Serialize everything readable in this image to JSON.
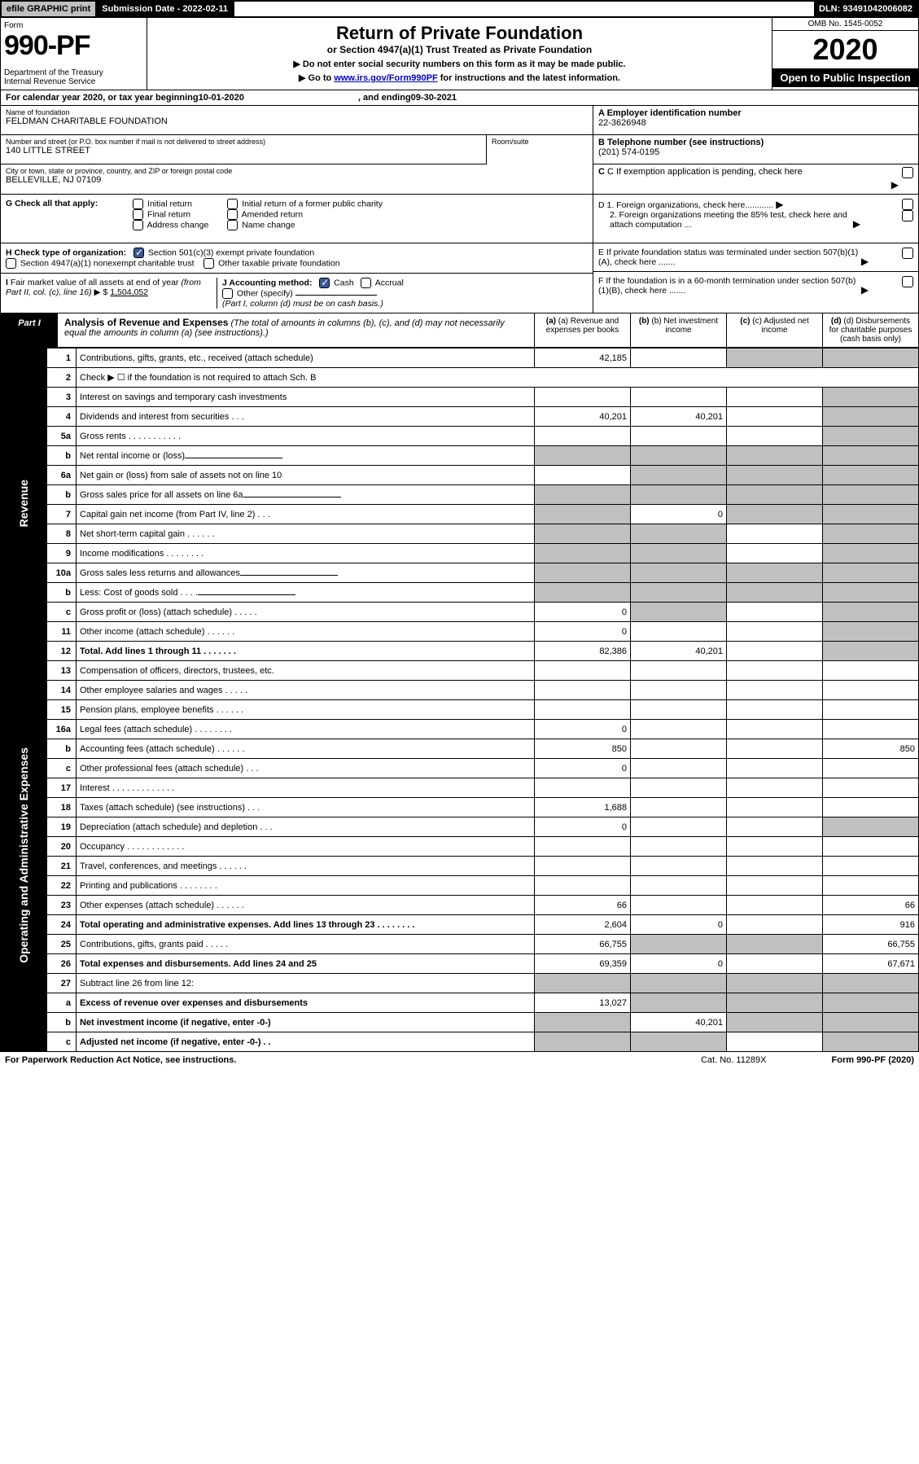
{
  "topbar": {
    "efile": "efile GRAPHIC print",
    "submission_label": "Submission Date - 2022-02-11",
    "dln": "DLN: 93491042006082"
  },
  "header": {
    "form_label": "Form",
    "form_number": "990-PF",
    "dept": "Department of the Treasury\nInternal Revenue Service",
    "title": "Return of Private Foundation",
    "subtitle": "or Section 4947(a)(1) Trust Treated as Private Foundation",
    "instr1": "▶ Do not enter social security numbers on this form as it may be made public.",
    "instr2_pre": "▶ Go to ",
    "instr2_link": "www.irs.gov/Form990PF",
    "instr2_post": " for instructions and the latest information.",
    "omb": "OMB No. 1545-0052",
    "year": "2020",
    "open": "Open to Public Inspection"
  },
  "cal": {
    "pre": "For calendar year 2020, or tax year beginning ",
    "begin": "10-01-2020",
    "mid": ", and ending ",
    "end": "09-30-2021"
  },
  "info": {
    "name_label": "Name of foundation",
    "name": "FELDMAN CHARITABLE FOUNDATION",
    "addr_label": "Number and street (or P.O. box number if mail is not delivered to street address)",
    "addr": "140 LITTLE STREET",
    "room_label": "Room/suite",
    "city_label": "City or town, state or province, country, and ZIP or foreign postal code",
    "city": "BELLEVILLE, NJ  07109",
    "a_label": "A Employer identification number",
    "a_val": "22-3626948",
    "b_label": "B Telephone number (see instructions)",
    "b_val": "(201) 574-0195",
    "c_label": "C If exemption application is pending, check here"
  },
  "g": {
    "label": "G Check all that apply:",
    "opts": [
      "Initial return",
      "Final return",
      "Address change",
      "Initial return of a former public charity",
      "Amended return",
      "Name change"
    ]
  },
  "h": {
    "label": "H Check type of organization:",
    "opt1": "Section 501(c)(3) exempt private foundation",
    "opt2": "Section 4947(a)(1) nonexempt charitable trust",
    "opt3": "Other taxable private foundation"
  },
  "i": {
    "label": "I Fair market value of all assets at end of year (from Part II, col. (c), line 16) ▶ $",
    "val": "1,504,052"
  },
  "j": {
    "label": "J Accounting method:",
    "cash": "Cash",
    "accrual": "Accrual",
    "other": "Other (specify)",
    "note": "(Part I, column (d) must be on cash basis.)"
  },
  "d": {
    "d1": "D 1. Foreign organizations, check here............",
    "d2": "2. Foreign organizations meeting the 85% test, check here and attach computation ..."
  },
  "e": "E  If private foundation status was terminated under section 507(b)(1)(A), check here .......",
  "f": "F  If the foundation is in a 60-month termination under section 507(b)(1)(B), check here .......",
  "part1": {
    "badge": "Part I",
    "title_b": "Analysis of Revenue and Expenses",
    "title_i": " (The total of amounts in columns (b), (c), and (d) may not necessarily equal the amounts in column (a) (see instructions).)",
    "cols": {
      "a": "(a) Revenue and expenses per books",
      "b": "(b) Net investment income",
      "c": "(c) Adjusted net income",
      "d": "(d) Disbursements for charitable purposes (cash basis only)"
    }
  },
  "vlabels": {
    "rev": "Revenue",
    "exp": "Operating and Administrative Expenses"
  },
  "rows": [
    {
      "n": "1",
      "d": "Contributions, gifts, grants, etc., received (attach schedule)",
      "a": "42,185",
      "b": "",
      "c": "G",
      "dv": "G"
    },
    {
      "n": "2",
      "d": "Check ▶ ☐ if the foundation is not required to attach Sch. B",
      "span": true
    },
    {
      "n": "3",
      "d": "Interest on savings and temporary cash investments",
      "a": "",
      "b": "",
      "c": "",
      "dv": "G"
    },
    {
      "n": "4",
      "d": "Dividends and interest from securities   .   .   .",
      "a": "40,201",
      "b": "40,201",
      "c": "",
      "dv": "G"
    },
    {
      "n": "5a",
      "d": "Gross rents   .   .   .   .   .   .   .   .   .   .   .",
      "a": "",
      "b": "",
      "c": "",
      "dv": "G"
    },
    {
      "n": "b",
      "d": "Net rental income or (loss)",
      "half": true,
      "a": "G",
      "b": "G",
      "c": "G",
      "dv": "G"
    },
    {
      "n": "6a",
      "d": "Net gain or (loss) from sale of assets not on line 10",
      "a": "",
      "b": "G",
      "c": "G",
      "dv": "G"
    },
    {
      "n": "b",
      "d": "Gross sales price for all assets on line 6a",
      "half": true,
      "a": "G",
      "b": "G",
      "c": "G",
      "dv": "G"
    },
    {
      "n": "7",
      "d": "Capital gain net income (from Part IV, line 2)   .   .   .",
      "a": "G",
      "b": "0",
      "c": "G",
      "dv": "G"
    },
    {
      "n": "8",
      "d": "Net short-term capital gain   .   .   .   .   .   .",
      "a": "G",
      "b": "G",
      "c": "",
      "dv": "G"
    },
    {
      "n": "9",
      "d": "Income modifications  .   .   .   .   .   .   .   .",
      "a": "G",
      "b": "G",
      "c": "",
      "dv": "G"
    },
    {
      "n": "10a",
      "d": "Gross sales less returns and allowances",
      "half": true,
      "a": "G",
      "b": "G",
      "c": "G",
      "dv": "G"
    },
    {
      "n": "b",
      "d": "Less: Cost of goods sold   .   .   .   .",
      "half": true,
      "a": "G",
      "b": "G",
      "c": "G",
      "dv": "G"
    },
    {
      "n": "c",
      "d": "Gross profit or (loss) (attach schedule)   .   .   .   .   .",
      "a": "0",
      "b": "G",
      "c": "",
      "dv": "G"
    },
    {
      "n": "11",
      "d": "Other income (attach schedule)   .   .   .   .   .   .",
      "a": "0",
      "b": "",
      "c": "",
      "dv": "G"
    },
    {
      "n": "12",
      "d": "Total. Add lines 1 through 11   .   .   .   .   .   .   .",
      "bold": true,
      "a": "82,386",
      "b": "40,201",
      "c": "",
      "dv": "G"
    }
  ],
  "exp_rows": [
    {
      "n": "13",
      "d": "Compensation of officers, directors, trustees, etc.",
      "a": "",
      "b": "",
      "c": "",
      "dv": ""
    },
    {
      "n": "14",
      "d": "Other employee salaries and wages   .   .   .   .   .",
      "a": "",
      "b": "",
      "c": "",
      "dv": ""
    },
    {
      "n": "15",
      "d": "Pension plans, employee benefits  .   .   .   .   .   .",
      "a": "",
      "b": "",
      "c": "",
      "dv": ""
    },
    {
      "n": "16a",
      "d": "Legal fees (attach schedule)  .   .   .   .   .   .   .   .",
      "a": "0",
      "b": "",
      "c": "",
      "dv": ""
    },
    {
      "n": "b",
      "d": "Accounting fees (attach schedule)  .   .   .   .   .   .",
      "a": "850",
      "b": "",
      "c": "",
      "dv": "850"
    },
    {
      "n": "c",
      "d": "Other professional fees (attach schedule)   .   .   .",
      "a": "0",
      "b": "",
      "c": "",
      "dv": ""
    },
    {
      "n": "17",
      "d": "Interest  .   .   .   .   .   .   .   .   .   .   .   .   .",
      "a": "",
      "b": "",
      "c": "",
      "dv": ""
    },
    {
      "n": "18",
      "d": "Taxes (attach schedule) (see instructions)   .   .   .",
      "a": "1,688",
      "b": "",
      "c": "",
      "dv": ""
    },
    {
      "n": "19",
      "d": "Depreciation (attach schedule) and depletion   .   .   .",
      "a": "0",
      "b": "",
      "c": "",
      "dv": "G"
    },
    {
      "n": "20",
      "d": "Occupancy  .   .   .   .   .   .   .   .   .   .   .   .",
      "a": "",
      "b": "",
      "c": "",
      "dv": ""
    },
    {
      "n": "21",
      "d": "Travel, conferences, and meetings  .   .   .   .   .   .",
      "a": "",
      "b": "",
      "c": "",
      "dv": ""
    },
    {
      "n": "22",
      "d": "Printing and publications  .   .   .   .   .   .   .   .",
      "a": "",
      "b": "",
      "c": "",
      "dv": ""
    },
    {
      "n": "23",
      "d": "Other expenses (attach schedule)  .   .   .   .   .   .",
      "a": "66",
      "b": "",
      "c": "",
      "dv": "66"
    },
    {
      "n": "24",
      "d": "Total operating and administrative expenses. Add lines 13 through 23   .   .   .   .   .   .   .   .",
      "bold": true,
      "a": "2,604",
      "b": "0",
      "c": "",
      "dv": "916"
    },
    {
      "n": "25",
      "d": "Contributions, gifts, grants paid   .   .   .   .   .",
      "a": "66,755",
      "b": "G",
      "c": "G",
      "dv": "66,755"
    },
    {
      "n": "26",
      "d": "Total expenses and disbursements. Add lines 24 and 25",
      "bold": true,
      "a": "69,359",
      "b": "0",
      "c": "",
      "dv": "67,671"
    },
    {
      "n": "27",
      "d": "Subtract line 26 from line 12:",
      "a": "G",
      "b": "G",
      "c": "G",
      "dv": "G"
    },
    {
      "n": "a",
      "d": "Excess of revenue over expenses and disbursements",
      "bold": true,
      "a": "13,027",
      "b": "G",
      "c": "G",
      "dv": "G"
    },
    {
      "n": "b",
      "d": "Net investment income (if negative, enter -0-)",
      "bold": true,
      "a": "G",
      "b": "40,201",
      "c": "G",
      "dv": "G"
    },
    {
      "n": "c",
      "d": "Adjusted net income (if negative, enter -0-)   .   .",
      "bold": true,
      "a": "G",
      "b": "G",
      "c": "",
      "dv": "G"
    }
  ],
  "footer": {
    "left": "For Paperwork Reduction Act Notice, see instructions.",
    "mid": "Cat. No. 11289X",
    "right": "Form 990-PF (2020)"
  }
}
